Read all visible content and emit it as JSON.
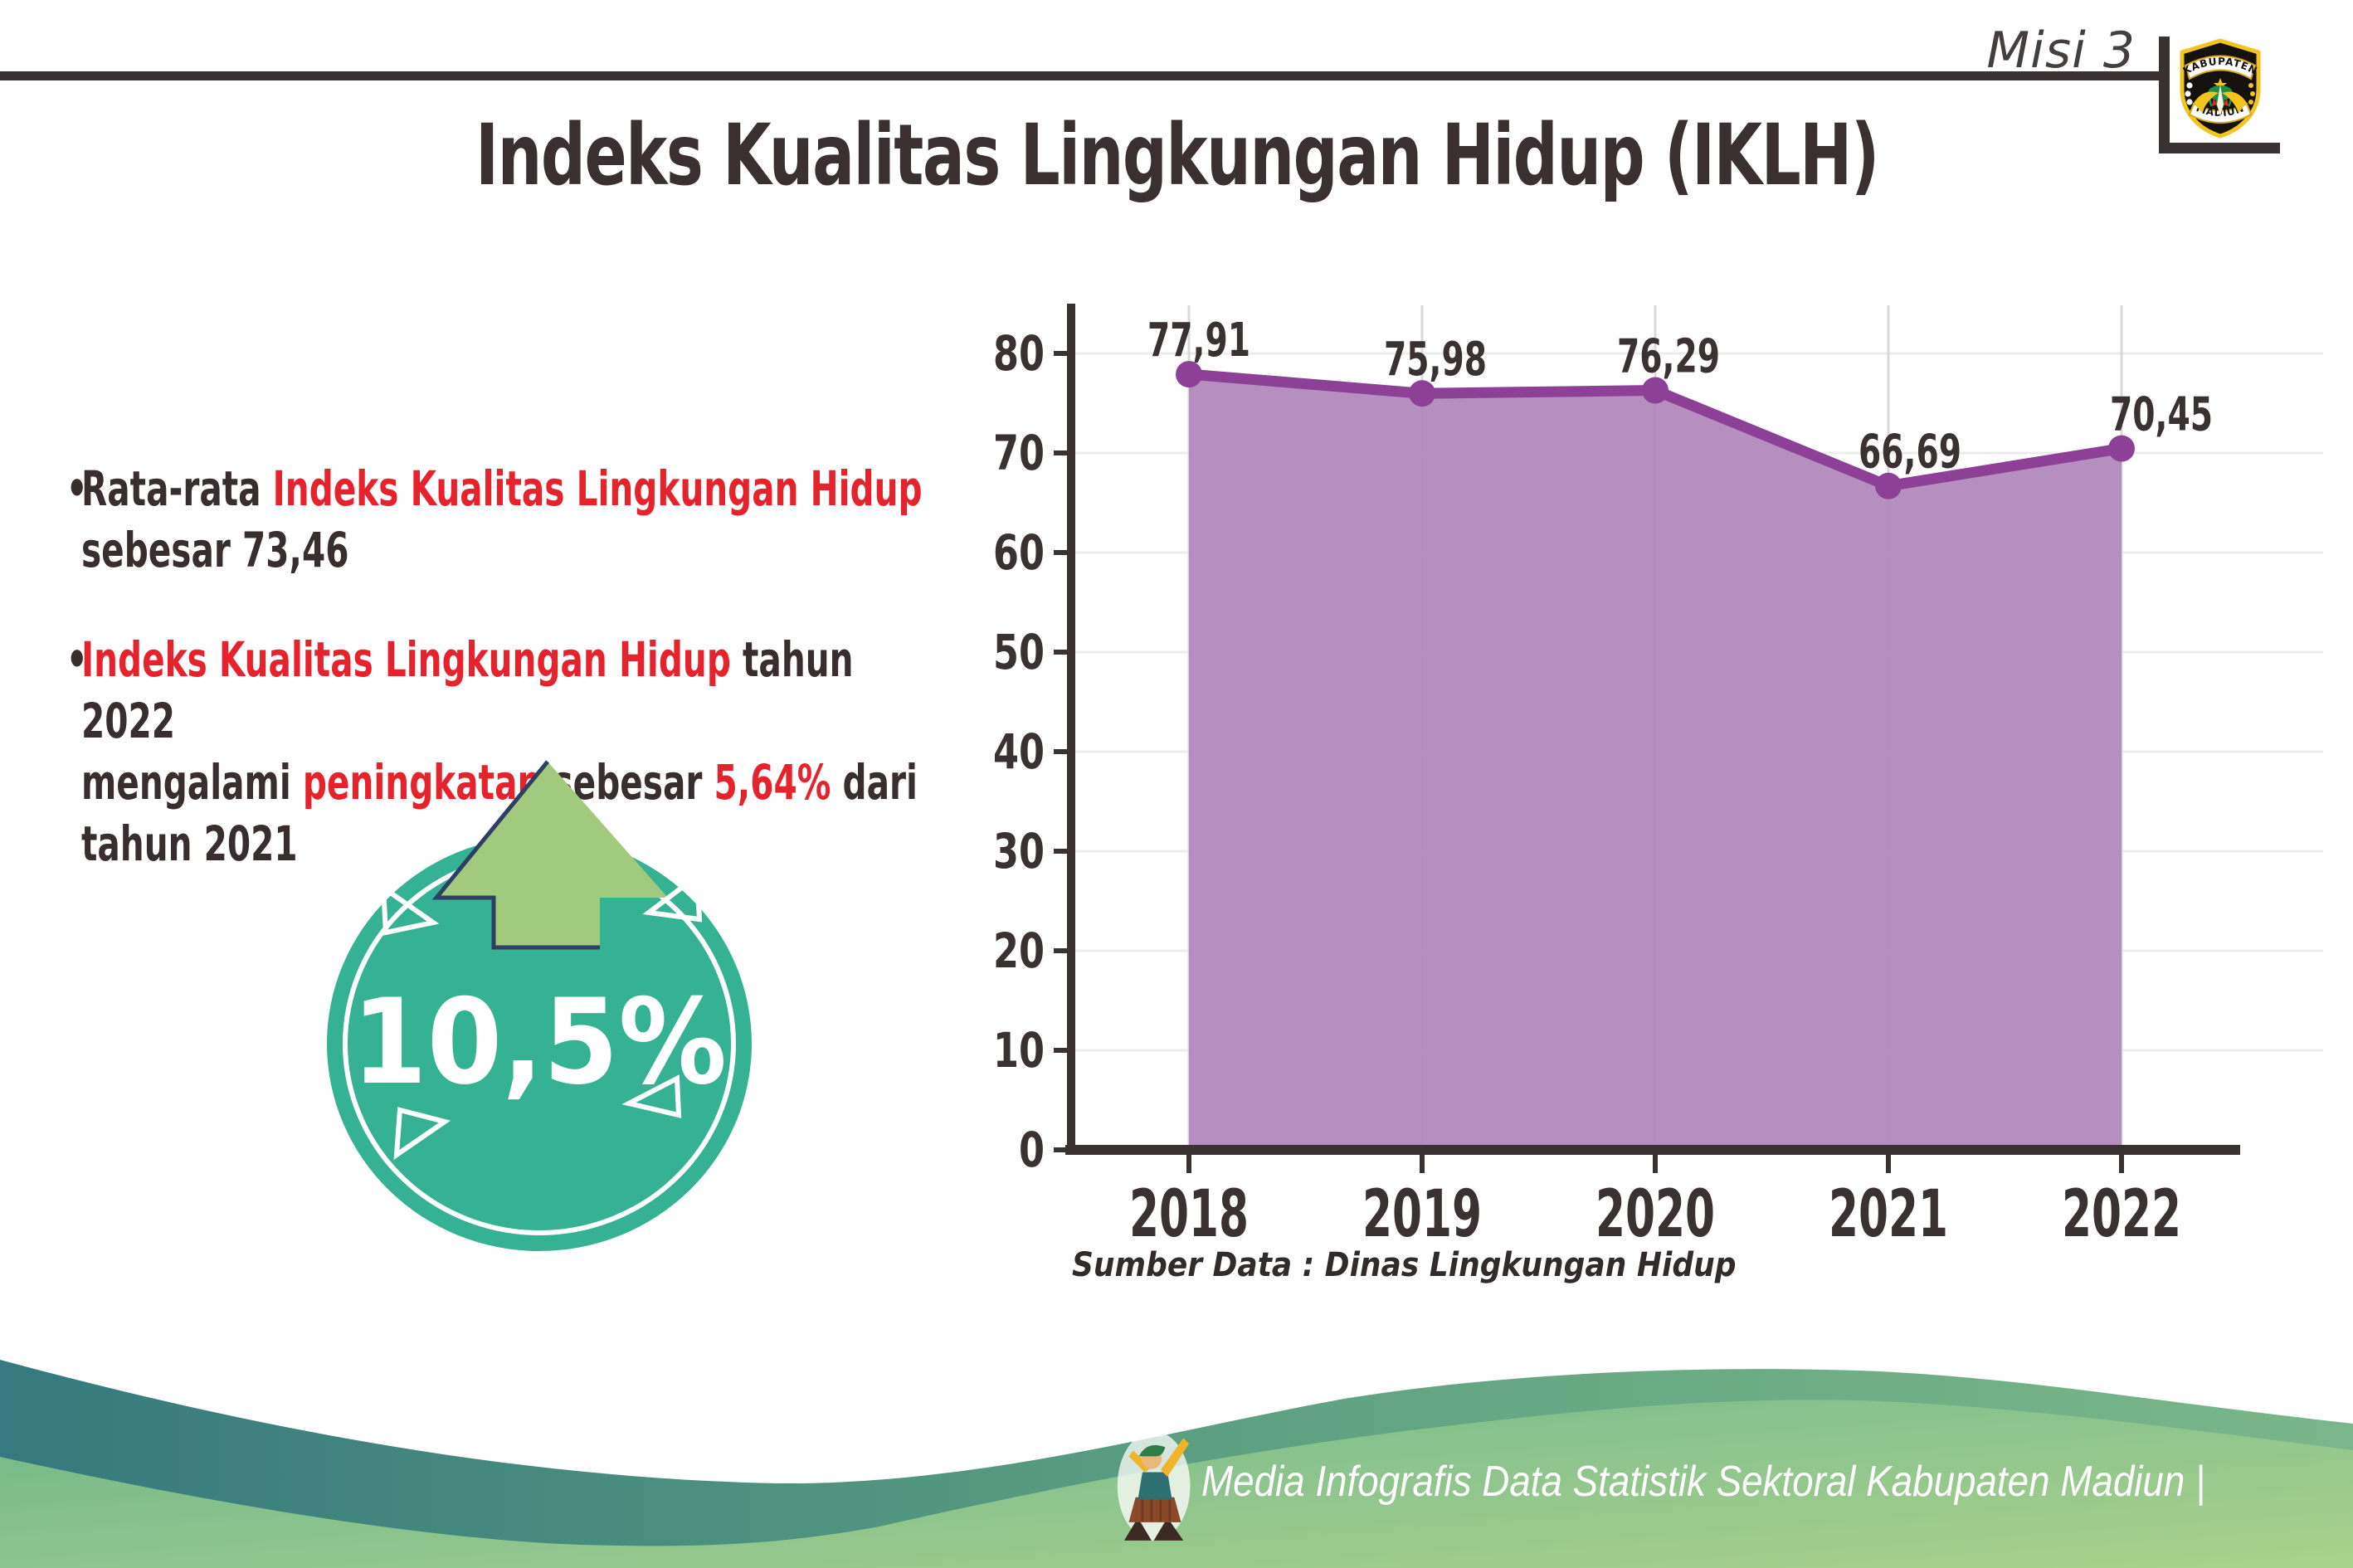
{
  "header": {
    "misi_label": "Misi 3",
    "logo": {
      "top": "KABUPATEN",
      "bottom": "MADIUN"
    },
    "title": "Indeks Kualitas Lingkungan Hidup (IKLH)"
  },
  "bullets": [
    {
      "segments": [
        {
          "text": "Rata-rata ",
          "red": false
        },
        {
          "text": "Indeks Kualitas Lingkungan Hidup",
          "red": true
        },
        {
          "text": "\nsebesar 73,46",
          "red": false
        }
      ]
    },
    {
      "segments": [
        {
          "text": "Indeks Kualitas Lingkungan Hidup",
          "red": true
        },
        {
          "text": " tahun 2022\nmengalami ",
          "red": false
        },
        {
          "text": "peningkatan",
          "red": true
        },
        {
          "text": " sebesar ",
          "red": false
        },
        {
          "text": "5,64%",
          "red": true
        },
        {
          "text": " dari\ntahun 2021",
          "red": false
        }
      ]
    }
  ],
  "badge": {
    "value": "10,5%"
  },
  "chart_data": {
    "type": "area",
    "categories": [
      "2018",
      "2019",
      "2020",
      "2021",
      "2022"
    ],
    "values": [
      77.91,
      75.98,
      76.29,
      66.69,
      70.45
    ],
    "point_labels": [
      "77,91",
      "75,98",
      "76,29",
      "66,69",
      "70,45"
    ],
    "ylim": [
      0,
      85
    ],
    "yticks": [
      0,
      10,
      20,
      30,
      40,
      50,
      60,
      70,
      80
    ],
    "grid": true,
    "legend": "none",
    "xlabel": "",
    "ylabel": "",
    "source": "Sumber Data : Dinas Lingkungan Hidup",
    "colors": {
      "area": "#b289bd",
      "line": "#8c4196",
      "label": "#3a3132"
    }
  },
  "footer": {
    "text": "Media Infografis Data Statistik Sektoral Kabupaten Madiun |"
  },
  "colors": {
    "accent_red": "#e6232c",
    "dark": "#3a3132",
    "badge_teal": "#35b293",
    "arrow_green": "#a2ca7e",
    "arrow_outline": "#2e3f63",
    "wave_teal": "#36797e",
    "wave_green": "#8dc48d"
  }
}
